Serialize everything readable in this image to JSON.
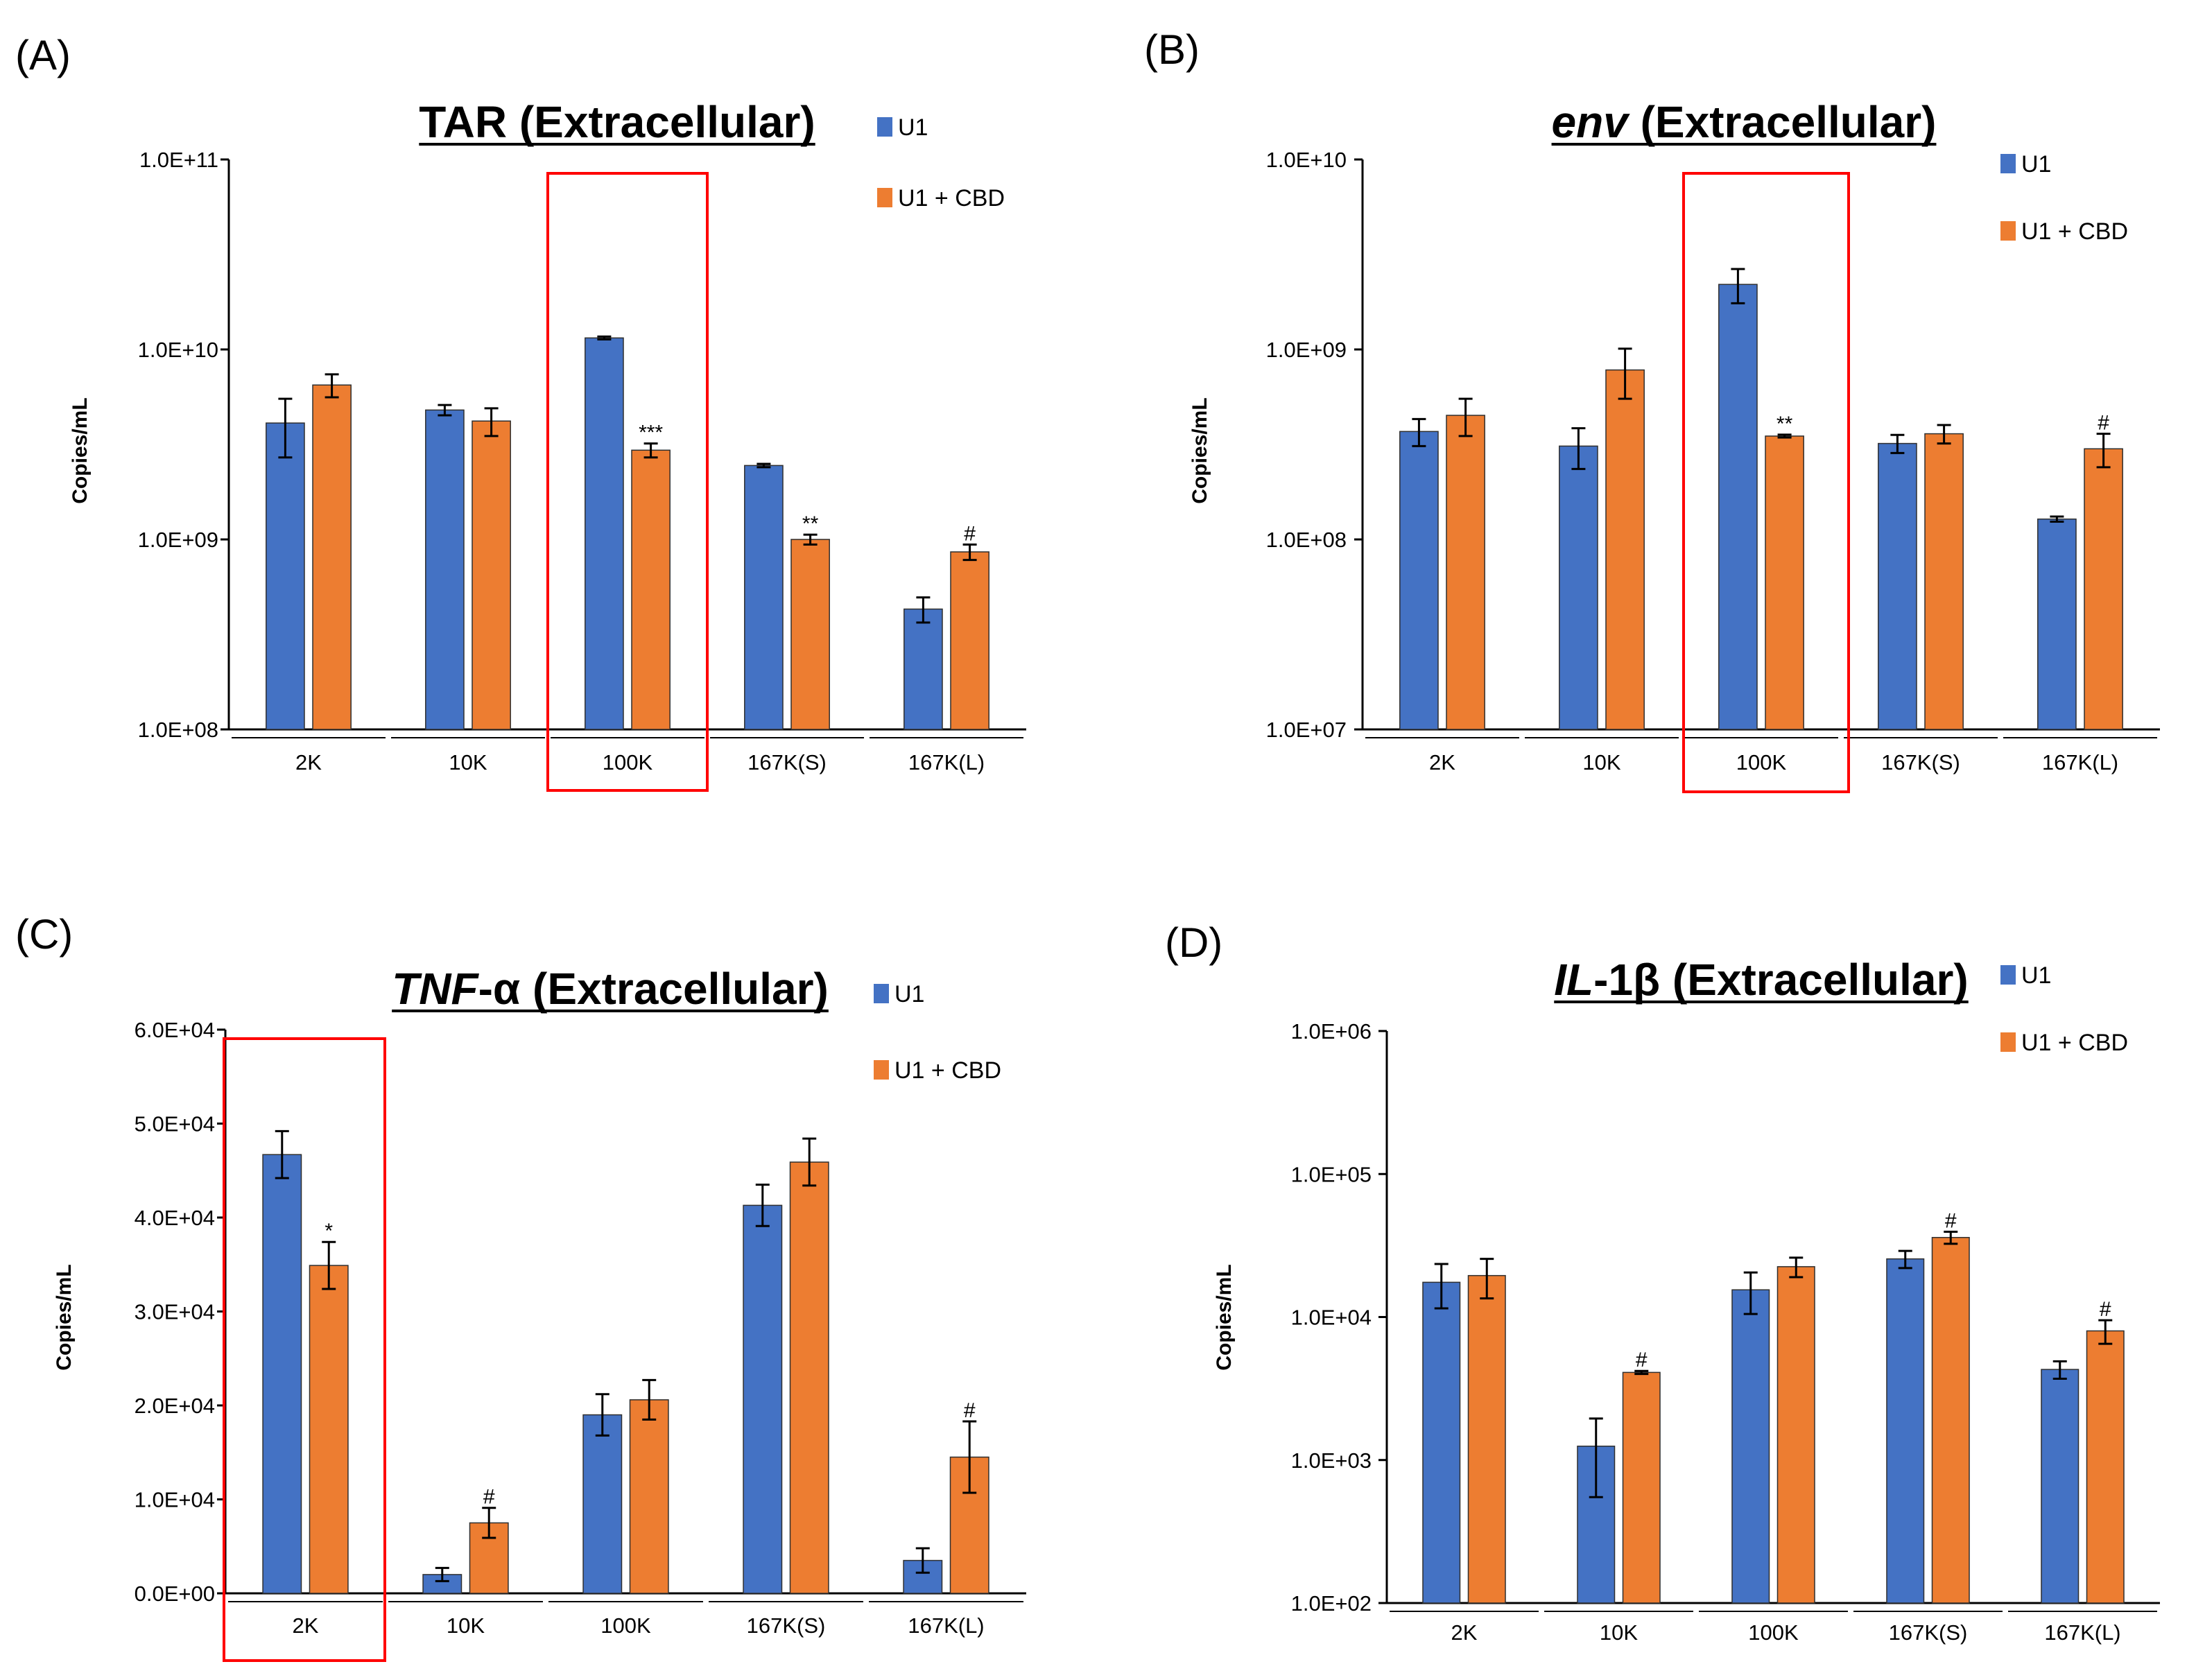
{
  "legend": {
    "series1": "U1",
    "series2": "U1 + CBD"
  },
  "colors": {
    "U1": "#4472c4",
    "CBD": "#ed7d31",
    "highlight": "#ff0000"
  },
  "chart_data": [
    {
      "panel": "(A)",
      "title": "TAR (Extracellular)",
      "title_italic_part": "",
      "title_rest": "TAR (Extracellular)",
      "type": "bar",
      "yscale": "log",
      "ylabel": "Copies/mL",
      "ylim": [
        100000000,
        100000000000
      ],
      "yticks": [
        100000000,
        1000000000,
        10000000000,
        100000000000
      ],
      "yticklabels": [
        "1.0E+08",
        "1.0E+09",
        "1.0E+10",
        "1.0E+11"
      ],
      "categories": [
        "2K",
        "10K",
        "100K",
        "167K(S)",
        "167K(L)"
      ],
      "highlight_category": "100K",
      "series": [
        {
          "name": "U1",
          "values": [
            4100000000,
            4800000000,
            11500000000,
            2450000000,
            430000000
          ],
          "errors": [
            1400000000,
            300000000,
            200000000,
            50000000,
            65000000
          ]
        },
        {
          "name": "U1 + CBD",
          "values": [
            6500000000,
            4200000000,
            2950000000,
            1000000000,
            860000000
          ],
          "errors": [
            900000000,
            700000000,
            250000000,
            60000000,
            80000000
          ]
        }
      ],
      "annotations": [
        {
          "category": "100K",
          "text": "***"
        },
        {
          "category": "167K(S)",
          "text": "**"
        },
        {
          "category": "167K(L)",
          "text": "#"
        }
      ]
    },
    {
      "panel": "(B)",
      "title": "env (Extracellular)",
      "title_italic_part": "env",
      "title_rest": " (Extracellular)",
      "type": "bar",
      "yscale": "log",
      "ylabel": "Copies/mL",
      "ylim": [
        10000000,
        10000000000
      ],
      "yticks": [
        10000000,
        100000000,
        1000000000,
        10000000000
      ],
      "yticklabels": [
        "1.0E+07",
        "1.0E+08",
        "1.0E+09",
        "1.0E+10"
      ],
      "categories": [
        "2K",
        "10K",
        "100K",
        "167K(S)",
        "167K(L)"
      ],
      "highlight_category": "100K",
      "series": [
        {
          "name": "U1",
          "values": [
            370000000,
            310000000,
            2200000000,
            320000000,
            128000000
          ],
          "errors": [
            60000000,
            75000000,
            450000000,
            35000000,
            4000000
          ]
        },
        {
          "name": "U1 + CBD",
          "values": [
            450000000,
            780000000,
            350000000,
            360000000,
            300000000
          ],
          "errors": [
            100000000,
            230000000,
            6000000,
            40000000,
            60000000
          ]
        }
      ],
      "annotations": [
        {
          "category": "100K",
          "text": "**"
        },
        {
          "category": "167K(L)",
          "text": "#"
        }
      ]
    },
    {
      "panel": "(C)",
      "title": "TNF-α (Extracellular)",
      "title_italic_part": "TNF",
      "title_rest": "-α (Extracellular)",
      "type": "bar",
      "yscale": "linear",
      "ylabel": "Copies/mL",
      "ylim": [
        0,
        60000
      ],
      "yticks": [
        0,
        10000,
        20000,
        30000,
        40000,
        50000,
        60000
      ],
      "yticklabels": [
        "0.0E+00",
        "1.0E+04",
        "2.0E+04",
        "3.0E+04",
        "4.0E+04",
        "5.0E+04",
        "6.0E+04"
      ],
      "categories": [
        "2K",
        "10K",
        "100K",
        "167K(S)",
        "167K(L)"
      ],
      "highlight_category": "2K",
      "series": [
        {
          "name": "U1",
          "values": [
            46700,
            2000,
            19000,
            41300,
            3500
          ],
          "errors": [
            2500,
            700,
            2200,
            2200,
            1300
          ]
        },
        {
          "name": "U1 + CBD",
          "values": [
            34900,
            7500,
            20600,
            45900,
            14500
          ],
          "errors": [
            2500,
            1600,
            2100,
            2500,
            3800
          ]
        }
      ],
      "annotations": [
        {
          "category": "2K",
          "text": "*"
        },
        {
          "category": "10K",
          "text": "#"
        },
        {
          "category": "167K(L)",
          "text": "#"
        }
      ]
    },
    {
      "panel": "(D)",
      "title": "IL-1β (Extracellular)",
      "title_italic_part": "IL",
      "title_rest": "-1β (Extracellular)",
      "type": "bar",
      "yscale": "log",
      "ylabel": "Copies/mL",
      "ylim": [
        100,
        1000000
      ],
      "yticks": [
        100,
        1000,
        10000,
        100000,
        1000000
      ],
      "yticklabels": [
        "1.0E+02",
        "1.0E+03",
        "1.0E+04",
        "1.0E+05",
        "1.0E+06"
      ],
      "categories": [
        "2K",
        "10K",
        "100K",
        "167K(S)",
        "167K(L)"
      ],
      "highlight_category": "",
      "series": [
        {
          "name": "U1",
          "values": [
            17500,
            1250,
            15500,
            25500,
            4300
          ],
          "errors": [
            6000,
            700,
            5000,
            3500,
            600
          ]
        },
        {
          "name": "U1 + CBD",
          "values": [
            19500,
            4100,
            22500,
            36000,
            8000
          ],
          "errors": [
            6000,
            100,
            3500,
            3500,
            1500
          ]
        }
      ],
      "annotations": [
        {
          "category": "10K",
          "text": "#"
        },
        {
          "category": "167K(S)",
          "text": "#"
        },
        {
          "category": "167K(L)",
          "text": "#"
        }
      ]
    }
  ]
}
